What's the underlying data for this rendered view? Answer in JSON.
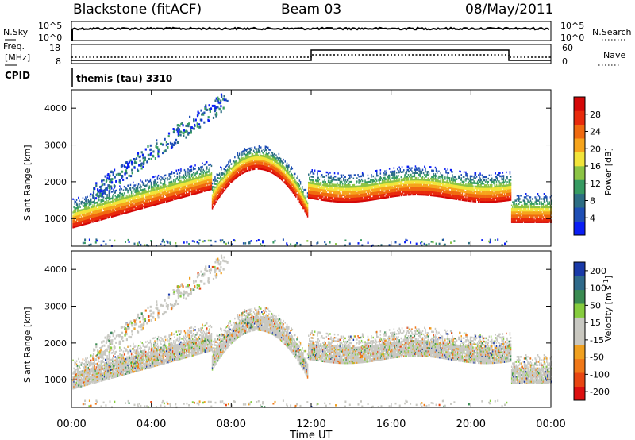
{
  "header": {
    "station": "Blackstone (fitACF)",
    "beam": "Beam 03",
    "date": "08/May/2011"
  },
  "aux_panels": {
    "nsky_label": "N.Sky",
    "nsky_ticks": [
      "10^5",
      "10^0"
    ],
    "nsearch_label": "N.Search",
    "nsearch_ticks": [
      "10^5",
      "10^0"
    ],
    "freq_label_1": "Freq.",
    "freq_label_2": "[MHz]",
    "freq_ticks": [
      "18",
      "8"
    ],
    "nave_label": "Nave",
    "nave_ticks": [
      "60",
      "0"
    ],
    "cpid_label": "CPID",
    "cpid_value": "themis (tau) 3310"
  },
  "colors": {
    "power_scale": [
      "#0a1ef5",
      "#1f4fb5",
      "#2d6e84",
      "#379b62",
      "#8cc445",
      "#f2e43a",
      "#f6a41c",
      "#f06a10",
      "#e82a0c",
      "#d40808"
    ],
    "velocity_scale": [
      "#1a3aa8",
      "#2f6a8a",
      "#3a8b52",
      "#86cc3e",
      "#c8c8c2",
      "#c9c7bf",
      "#f0a020",
      "#f07818",
      "#e84612",
      "#dc1010"
    ]
  },
  "chart_data": [
    {
      "type": "heatmap",
      "name": "power",
      "ylabel": "Slant Range [km]",
      "yticks": [
        "1000",
        "2000",
        "3000",
        "4000"
      ],
      "ylim": [
        250,
        4500
      ],
      "xlim": [
        "00:00",
        "24:00"
      ],
      "colorbar_label": "Power [dB]",
      "colorbar_ticks": [
        "4",
        "8",
        "12",
        "16",
        "20",
        "24",
        "28"
      ],
      "colorbar_range": [
        0,
        32
      ]
    },
    {
      "type": "heatmap",
      "name": "velocity",
      "ylabel": "Slant Range [km]",
      "yticks": [
        "1000",
        "2000",
        "3000",
        "4000"
      ],
      "ylim": [
        250,
        4500
      ],
      "xlim": [
        "00:00",
        "24:00"
      ],
      "colorbar_label_main": "Velocity",
      "colorbar_label_units": "[m s",
      "colorbar_label_exp": "-1",
      "colorbar_label_close": "]",
      "colorbar_ticks": [
        "200",
        "100",
        "50",
        "15",
        "-15",
        "-50",
        "-100",
        "-200"
      ],
      "colorbar_range": [
        -250,
        250
      ]
    }
  ],
  "xaxis": {
    "ticks": [
      "00:00",
      "04:00",
      "08:00",
      "12:00",
      "16:00",
      "20:00",
      "00:00"
    ],
    "label": "Time UT"
  }
}
